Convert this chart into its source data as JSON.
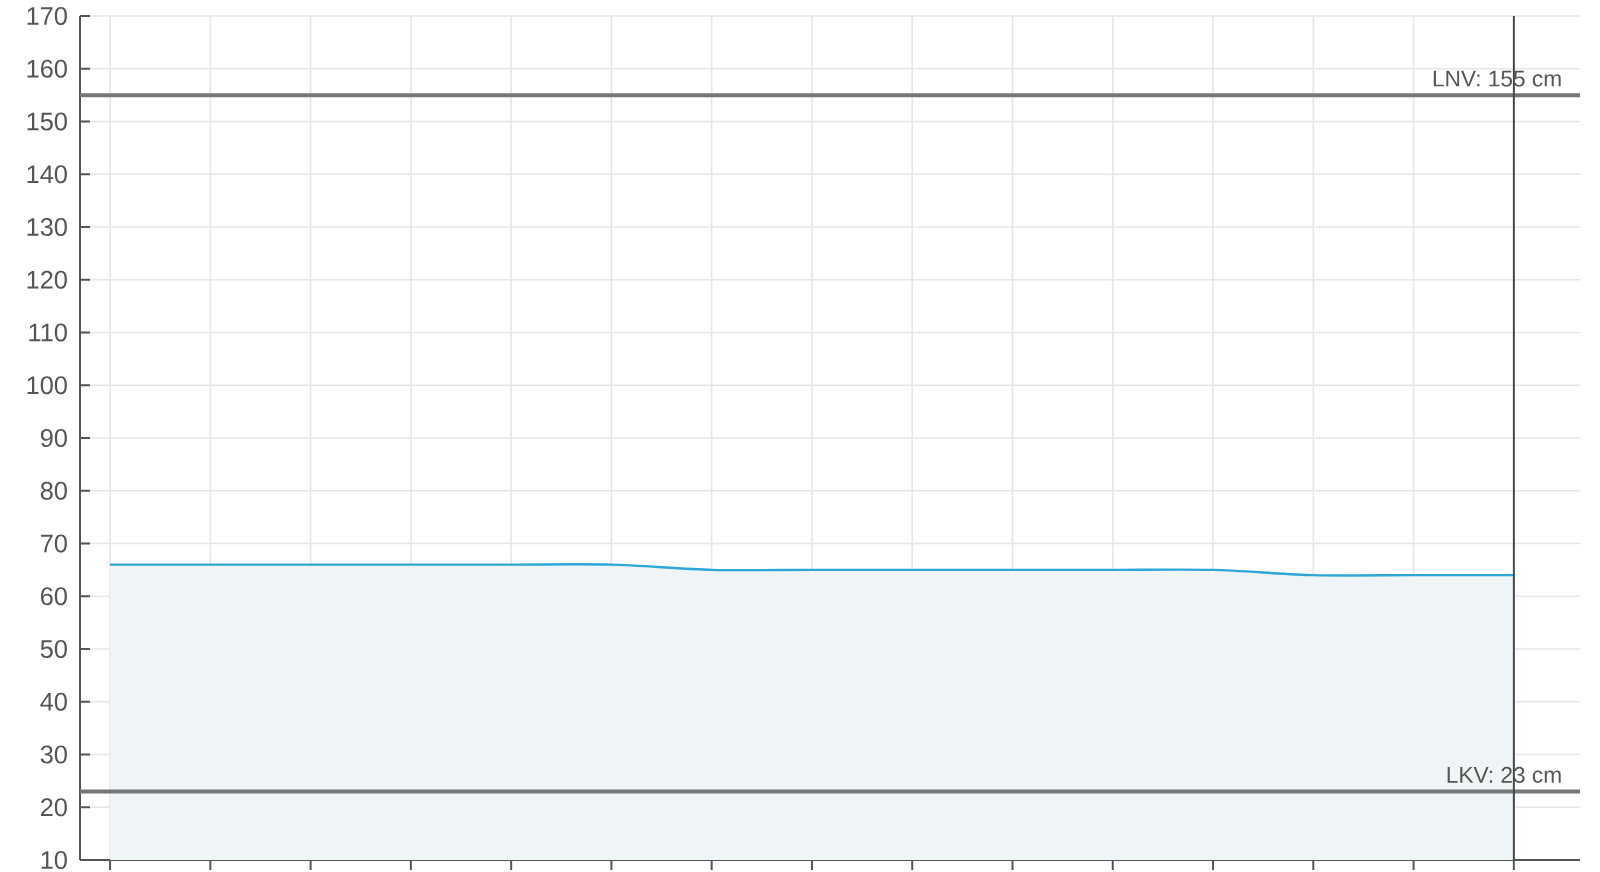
{
  "chart_data": {
    "type": "area",
    "categories": [
      null,
      null,
      null,
      null,
      null,
      null,
      null,
      null,
      null,
      null,
      null,
      null,
      null,
      null,
      null
    ],
    "values": [
      66,
      66,
      66,
      66,
      66,
      66,
      65,
      65,
      65,
      65,
      65,
      65,
      64,
      64,
      64
    ],
    "color": "#2ea6d6",
    "ylim": [
      10,
      170
    ],
    "yticks": [
      10,
      20,
      30,
      40,
      50,
      60,
      70,
      80,
      90,
      100,
      110,
      120,
      130,
      140,
      150,
      160,
      170
    ],
    "grid": true,
    "ref_lines": [
      {
        "axis": "y",
        "value": 155,
        "label": "LNV: 155 cm",
        "color": "#777777"
      },
      {
        "axis": "y",
        "value": 23,
        "label": "LKV: 23 cm",
        "color": "#777777"
      }
    ]
  }
}
